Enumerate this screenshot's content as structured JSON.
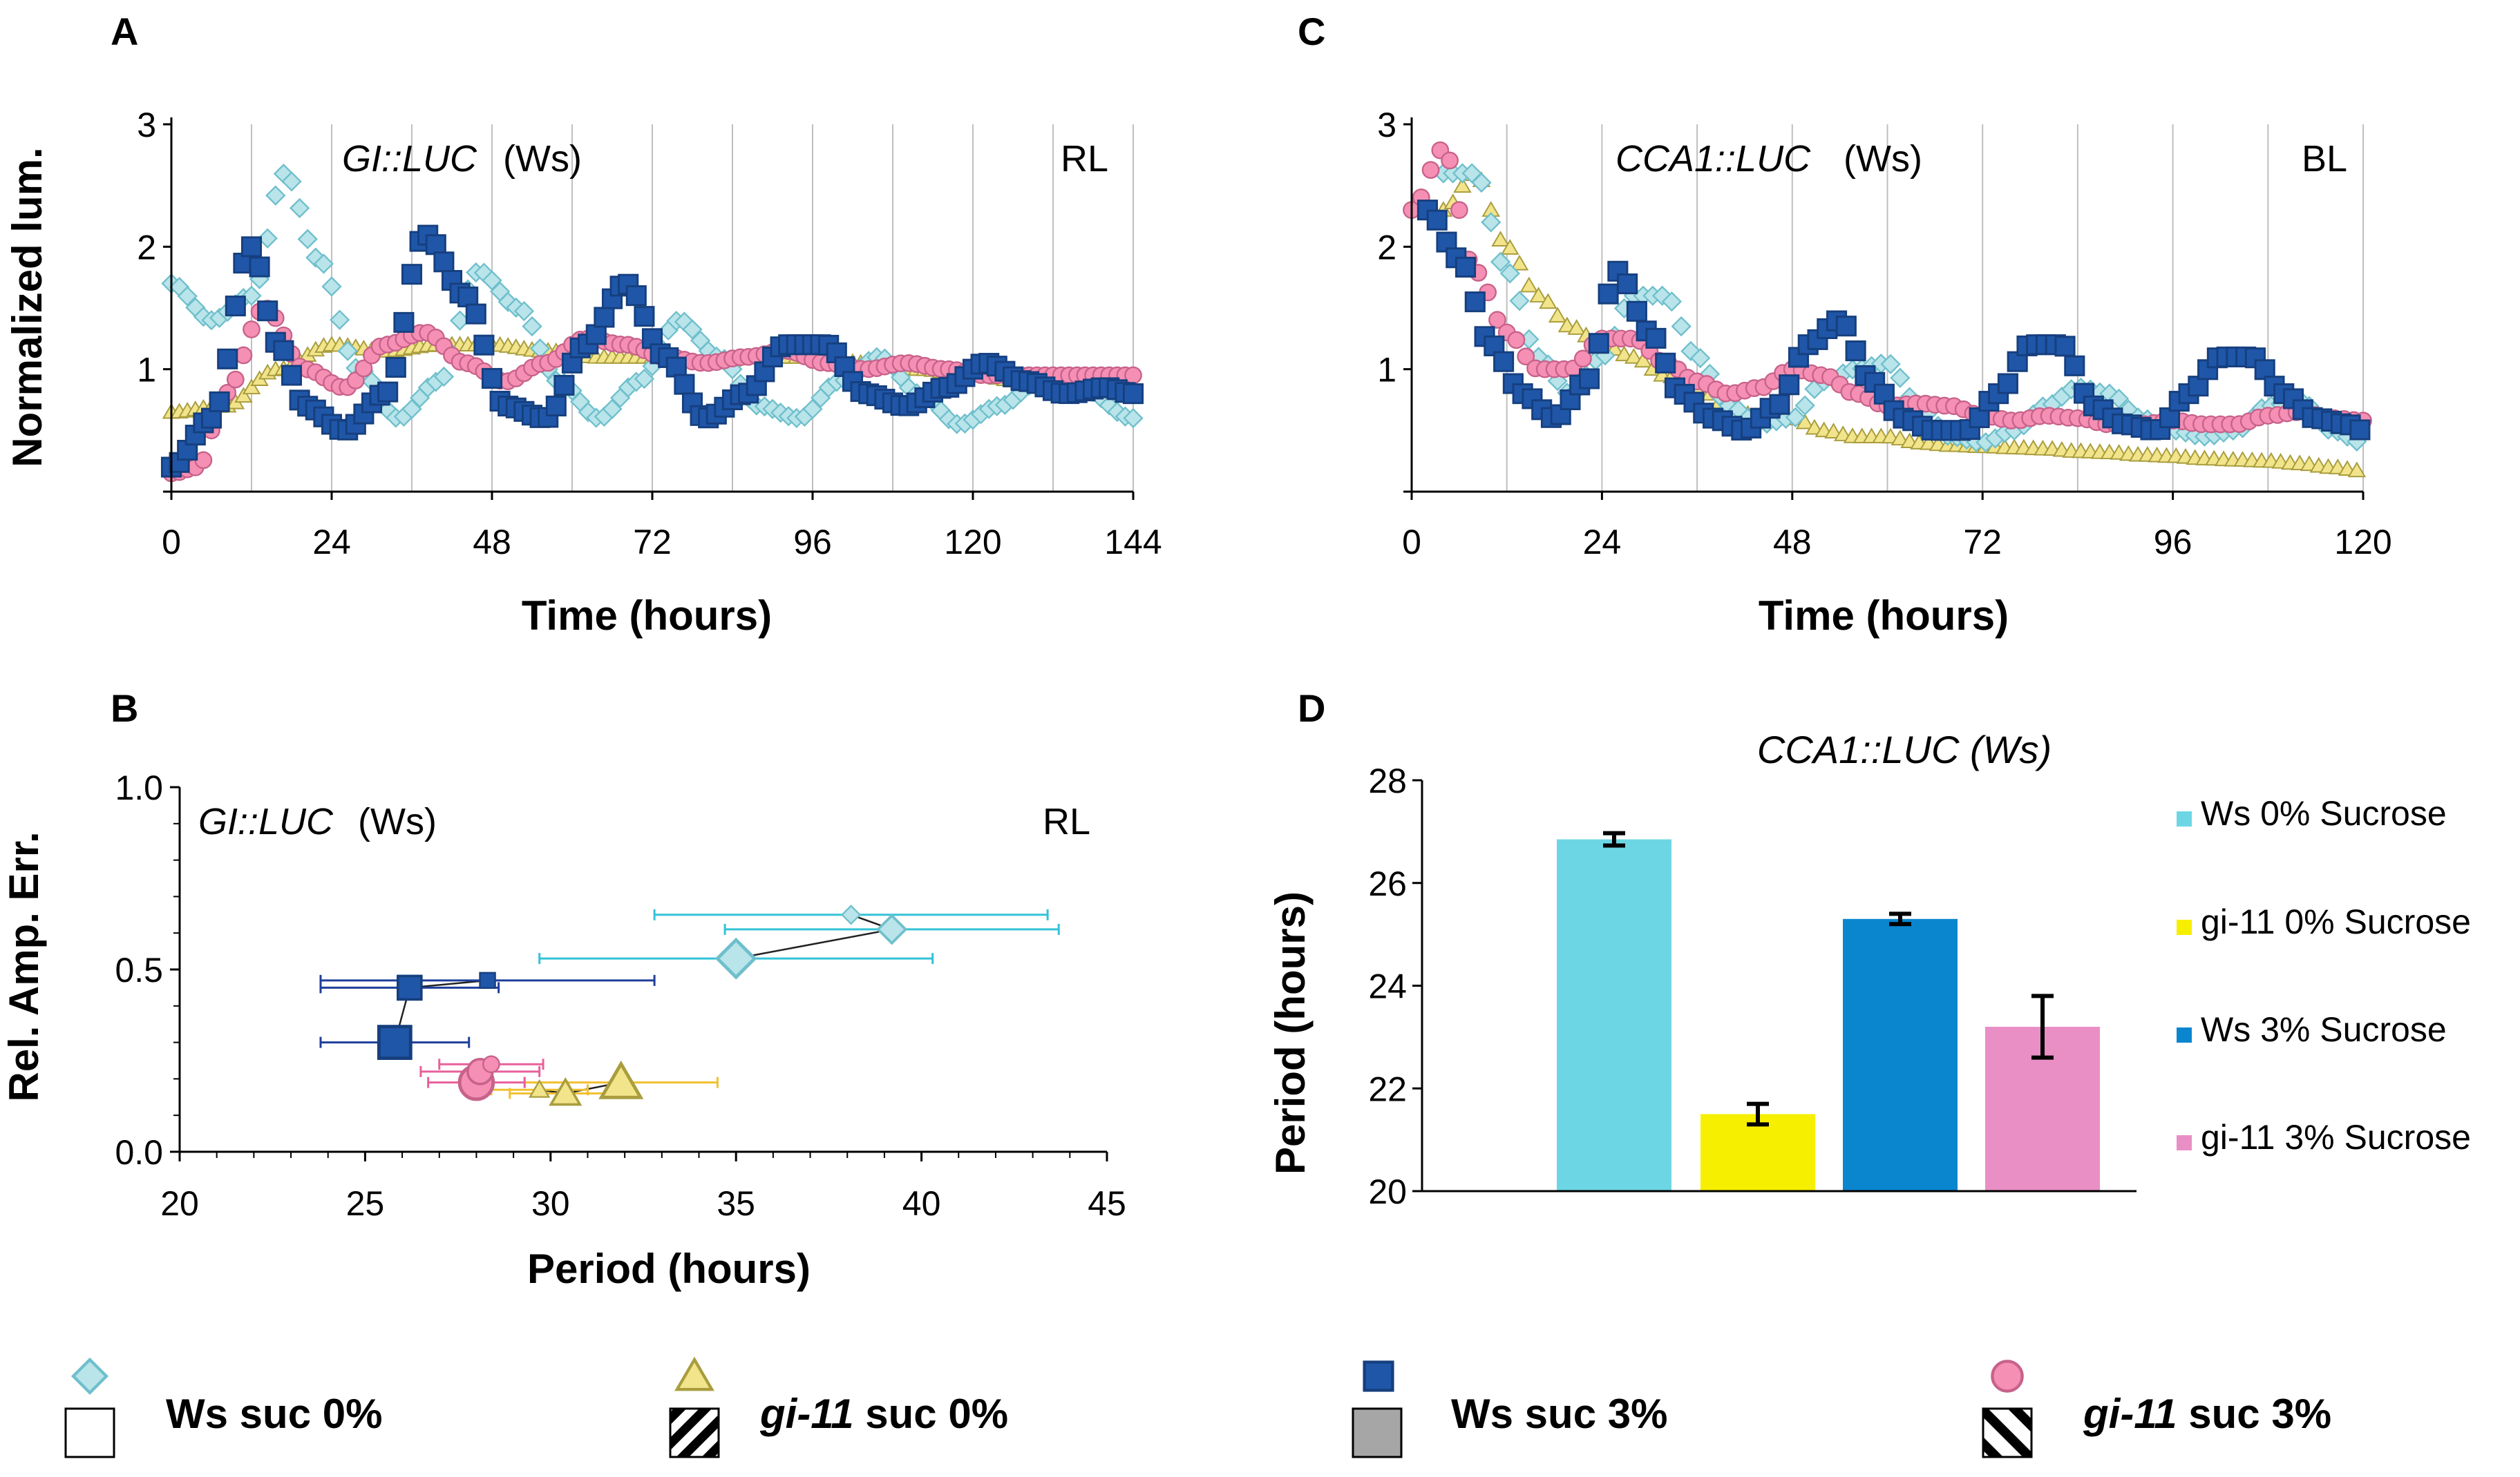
{
  "colors": {
    "ws0": "#b8e4ea",
    "ws0_stroke": "#6fbfcc",
    "gi0": "#f2e48a",
    "gi0_stroke": "#a99d3e",
    "ws3": "#1f56a8",
    "ws3_stroke": "#163f7e",
    "gi3": "#f58fb3",
    "gi3_stroke": "#c7628a",
    "bar_ws0": "#6dd6e4",
    "bar_gi0": "#f7ef00",
    "bar_ws3": "#0a86cf",
    "bar_gi3": "#e98fc6",
    "grid": "#bfbfbf",
    "axis": "#000000"
  },
  "chart_data": [
    {
      "panel": "A",
      "type": "line",
      "title": "GI::LUC (Ws)",
      "title_gene": "GI::LUC",
      "title_strain": "(Ws)",
      "condition": "RL",
      "xlabel": "Time (hours)",
      "ylabel": "Normalized lum.",
      "xlim": [
        0,
        144
      ],
      "ylim": [
        0,
        3
      ],
      "xticks": [
        "0",
        "24",
        "48",
        "72",
        "96",
        "120",
        "144"
      ],
      "yticks": [
        "1",
        "2",
        "3"
      ],
      "series": [
        {
          "name": "Ws suc 0%",
          "marker": "diamond",
          "x": [
            0,
            6,
            12,
            17,
            22,
            28,
            34,
            40,
            46,
            52,
            58,
            64,
            70,
            76,
            82,
            88,
            94,
            100,
            106,
            112,
            118,
            124,
            130,
            136,
            144
          ],
          "y": [
            1.7,
            1.4,
            1.6,
            2.6,
            1.9,
            1.0,
            0.6,
            0.9,
            1.8,
            1.5,
            0.9,
            0.6,
            0.9,
            1.4,
            1.1,
            0.7,
            0.6,
            0.9,
            1.1,
            0.8,
            0.55,
            0.7,
            0.9,
            0.85,
            0.6
          ]
        },
        {
          "name": "gi-11 suc 0%",
          "marker": "triangle",
          "x": [
            0,
            8,
            16,
            24,
            32,
            40,
            48,
            56,
            64,
            72,
            80,
            88,
            96,
            104,
            112,
            120,
            128,
            136,
            144
          ],
          "y": [
            0.65,
            0.7,
            1.0,
            1.2,
            1.15,
            1.2,
            1.2,
            1.15,
            1.1,
            1.1,
            1.05,
            1.1,
            1.1,
            1.05,
            1.0,
            0.95,
            0.9,
            0.85,
            0.8
          ]
        },
        {
          "name": "Ws suc 3%",
          "marker": "square",
          "x": [
            0,
            6,
            12,
            16,
            20,
            26,
            32,
            38,
            44,
            50,
            56,
            62,
            68,
            74,
            80,
            86,
            92,
            98,
            104,
            110,
            116,
            122,
            128,
            134,
            140,
            144
          ],
          "y": [
            0.2,
            0.6,
            2.0,
            1.2,
            0.7,
            0.5,
            0.8,
            2.1,
            1.6,
            0.7,
            0.6,
            1.2,
            1.7,
            1.1,
            0.6,
            0.8,
            1.2,
            1.2,
            0.8,
            0.7,
            0.85,
            1.05,
            0.9,
            0.8,
            0.85,
            0.8
          ]
        },
        {
          "name": "gi-11 suc 3%",
          "marker": "circle",
          "x": [
            0,
            4,
            8,
            14,
            20,
            26,
            32,
            38,
            44,
            50,
            56,
            62,
            68,
            74,
            80,
            86,
            92,
            98,
            104,
            110,
            116,
            122,
            128,
            134,
            140,
            144
          ],
          "y": [
            0.15,
            0.2,
            0.8,
            1.5,
            1.0,
            0.85,
            1.2,
            1.3,
            1.05,
            0.9,
            1.05,
            1.25,
            1.2,
            1.1,
            1.05,
            1.1,
            1.15,
            1.05,
            1.0,
            1.05,
            1.0,
            0.95,
            0.95,
            0.95,
            0.95,
            0.95
          ]
        }
      ]
    },
    {
      "panel": "C",
      "type": "line",
      "title": "CCA1::LUC (Ws)",
      "title_gene": "CCA1::LUC",
      "title_strain": "(Ws)",
      "condition": "BL",
      "xlabel": "Time (hours)",
      "ylabel": "",
      "xlim": [
        0,
        120
      ],
      "ylim": [
        0,
        3
      ],
      "xticks": [
        "0",
        "24",
        "48",
        "72",
        "96",
        "120"
      ],
      "yticks": [
        "1",
        "2",
        "3"
      ],
      "series": [
        {
          "name": "Ws suc 0%",
          "marker": "diamond",
          "x": [
            4,
            8,
            12,
            16,
            20,
            24,
            28,
            32,
            36,
            40,
            44,
            48,
            52,
            56,
            60,
            64,
            68,
            72,
            76,
            80,
            84,
            88,
            92,
            96,
            100,
            104,
            108,
            112,
            116,
            120
          ],
          "y": [
            2.6,
            2.6,
            1.8,
            1.1,
            0.8,
            1.1,
            1.6,
            1.6,
            1.1,
            0.7,
            0.55,
            0.6,
            0.9,
            1.0,
            1.05,
            0.7,
            0.45,
            0.4,
            0.5,
            0.7,
            0.85,
            0.8,
            0.6,
            0.5,
            0.45,
            0.5,
            0.7,
            0.75,
            0.5,
            0.4
          ]
        },
        {
          "name": "gi-11 suc 0%",
          "marker": "triangle",
          "x": [
            4,
            8,
            12,
            16,
            20,
            24,
            28,
            32,
            36,
            40,
            44,
            48,
            52,
            56,
            60,
            64,
            68,
            72,
            76,
            80,
            84,
            88,
            92,
            96,
            100,
            104,
            108,
            112,
            116,
            120
          ],
          "y": [
            2.3,
            2.6,
            2.0,
            1.6,
            1.35,
            1.2,
            1.1,
            0.95,
            0.85,
            0.7,
            0.6,
            0.6,
            0.5,
            0.45,
            0.45,
            0.4,
            0.38,
            0.37,
            0.36,
            0.35,
            0.33,
            0.32,
            0.3,
            0.29,
            0.27,
            0.26,
            0.25,
            0.23,
            0.2,
            0.17
          ]
        },
        {
          "name": "Ws suc 3%",
          "marker": "square",
          "x": [
            2,
            6,
            10,
            14,
            18,
            22,
            26,
            30,
            34,
            38,
            42,
            46,
            50,
            54,
            58,
            62,
            66,
            70,
            74,
            78,
            82,
            86,
            90,
            94,
            98,
            102,
            106,
            110,
            114,
            118,
            120
          ],
          "y": [
            2.3,
            1.9,
            1.2,
            0.8,
            0.6,
            0.9,
            1.8,
            1.3,
            0.8,
            0.6,
            0.5,
            0.7,
            1.2,
            1.4,
            0.9,
            0.6,
            0.5,
            0.5,
            0.8,
            1.2,
            1.2,
            0.7,
            0.55,
            0.5,
            0.8,
            1.1,
            1.1,
            0.8,
            0.6,
            0.55,
            0.5
          ]
        },
        {
          "name": "gi-11 suc 3%",
          "marker": "circle",
          "x": [
            0,
            4,
            8,
            12,
            16,
            20,
            24,
            28,
            32,
            36,
            40,
            44,
            48,
            52,
            56,
            60,
            64,
            68,
            72,
            76,
            80,
            84,
            88,
            92,
            96,
            100,
            104,
            108,
            112,
            116,
            120
          ],
          "y": [
            2.3,
            2.8,
            1.8,
            1.3,
            1.0,
            1.0,
            1.25,
            1.25,
            1.05,
            0.9,
            0.8,
            0.85,
            1.0,
            0.95,
            0.8,
            0.7,
            0.72,
            0.7,
            0.62,
            0.58,
            0.62,
            0.6,
            0.55,
            0.55,
            0.58,
            0.55,
            0.55,
            0.62,
            0.65,
            0.6,
            0.58
          ]
        }
      ]
    },
    {
      "panel": "B",
      "type": "scatter",
      "title": "GI::LUC (Ws)",
      "title_gene": "GI::LUC",
      "title_strain": "(Ws)",
      "condition": "RL",
      "xlabel": "Period (hours)",
      "ylabel": "Rel. Amp. Err.",
      "xlim": [
        20,
        45
      ],
      "ylim": [
        0,
        1.0
      ],
      "xticks": [
        "20",
        "25",
        "30",
        "35",
        "40",
        "45"
      ],
      "yticks": [
        "0.0",
        "0.5",
        "1.0"
      ],
      "series": [
        {
          "name": "Ws suc 0%",
          "marker": "diamond",
          "points": [
            {
              "x": 35.0,
              "y": 0.53,
              "xerr": 5.3,
              "size": "large"
            },
            {
              "x": 39.2,
              "y": 0.61,
              "xerr": 4.5,
              "size": "medium"
            },
            {
              "x": 38.1,
              "y": 0.65,
              "xerr": 5.3,
              "size": "small"
            }
          ]
        },
        {
          "name": "gi-11 suc 0%",
          "marker": "triangle",
          "points": [
            {
              "x": 31.9,
              "y": 0.19,
              "xerr": 2.6,
              "size": "large"
            },
            {
              "x": 30.4,
              "y": 0.16,
              "xerr": 1.5,
              "size": "medium"
            },
            {
              "x": 29.7,
              "y": 0.17,
              "xerr": 1.3,
              "size": "small"
            }
          ]
        },
        {
          "name": "Ws suc 3%",
          "marker": "square",
          "points": [
            {
              "x": 25.8,
              "y": 0.3,
              "xerr": 2.0,
              "size": "large"
            },
            {
              "x": 26.2,
              "y": 0.45,
              "xerr": 2.4,
              "size": "medium"
            },
            {
              "x": 28.3,
              "y": 0.47,
              "xerr": 4.5,
              "size": "small"
            }
          ]
        },
        {
          "name": "gi-11 suc 3%",
          "marker": "circle",
          "points": [
            {
              "x": 28.0,
              "y": 0.19,
              "xerr": 1.3,
              "size": "large"
            },
            {
              "x": 28.1,
              "y": 0.22,
              "xerr": 1.6,
              "size": "medium"
            },
            {
              "x": 28.4,
              "y": 0.24,
              "xerr": 1.4,
              "size": "small"
            }
          ]
        }
      ]
    },
    {
      "panel": "D",
      "type": "bar",
      "title": "CCA1::LUC (Ws)",
      "xlabel": "",
      "ylabel": "Period (hours)",
      "ylim": [
        20,
        28
      ],
      "yticks": [
        "20",
        "22",
        "24",
        "26",
        "28"
      ],
      "categories": [
        "Ws 0% Sucrose",
        "gi-11 0% Sucrose",
        "Ws 3% Sucrose",
        "gi-11 3% Sucrose"
      ],
      "values": [
        26.85,
        21.5,
        25.3,
        23.2
      ],
      "errors": [
        0.12,
        0.2,
        0.1,
        0.6
      ],
      "legend": [
        "Ws 0% Sucrose",
        "gi-11 0% Sucrose",
        "Ws 3% Sucrose",
        "gi-11 3% Sucrose"
      ]
    }
  ],
  "panel_labels": {
    "a": "A",
    "b": "B",
    "c": "C",
    "d": "D"
  },
  "legend": [
    {
      "label_italic": "",
      "label_rest": "Ws suc 0%",
      "marker": "diamond",
      "swatch": "white"
    },
    {
      "label_italic": "gi-11",
      "label_rest": " suc 0%",
      "marker": "triangle",
      "swatch": "hatched-dense"
    },
    {
      "label_italic": "",
      "label_rest": "Ws suc 3%",
      "marker": "square",
      "swatch": "gray"
    },
    {
      "label_italic": "gi-11",
      "label_rest": " suc 3%",
      "marker": "circle",
      "swatch": "hatched-sparse"
    }
  ]
}
